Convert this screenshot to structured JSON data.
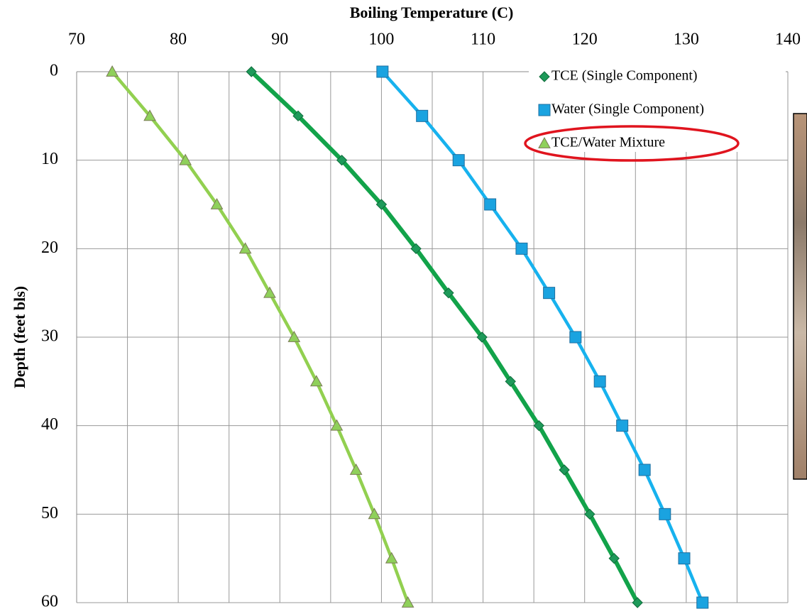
{
  "chart_data": {
    "type": "line",
    "title": "Boiling Temperature (C)",
    "y_label": "Depth (feet bls)",
    "x_axis_position": "top",
    "y_inverted": true,
    "grid": true,
    "legend_position": "top-right",
    "xlim": [
      70,
      140
    ],
    "xticks": [
      70,
      80,
      90,
      100,
      110,
      120,
      130,
      140
    ],
    "ylim": [
      0,
      60
    ],
    "yticks": [
      0,
      10,
      20,
      30,
      40,
      50,
      60
    ],
    "y": [
      0,
      5,
      10,
      15,
      20,
      25,
      30,
      35,
      40,
      45,
      50,
      55,
      60
    ],
    "series": [
      {
        "name": "TCE (Single Component)",
        "color": "#12a34a",
        "marker": "diamond",
        "marker_color": "#1e9a5a",
        "values": [
          87.2,
          91.8,
          96.1,
          100.0,
          103.4,
          106.6,
          109.9,
          112.7,
          115.5,
          118.0,
          120.5,
          122.9,
          125.2
        ]
      },
      {
        "name": "Water (Single Component)",
        "color": "#17b2ee",
        "marker": "square",
        "marker_color": "#1aa3e0",
        "values": [
          100.1,
          104.0,
          107.6,
          110.7,
          113.8,
          116.5,
          119.1,
          121.5,
          123.7,
          125.9,
          127.9,
          129.8,
          131.6
        ]
      },
      {
        "name": "TCE/Water Mixture",
        "color": "#92d050",
        "marker": "triangle",
        "marker_color": "#8fd05a",
        "values": [
          73.5,
          77.2,
          80.7,
          83.8,
          86.6,
          89.0,
          91.4,
          93.6,
          95.6,
          97.5,
          99.3,
          101.0,
          102.6
        ]
      }
    ]
  }
}
